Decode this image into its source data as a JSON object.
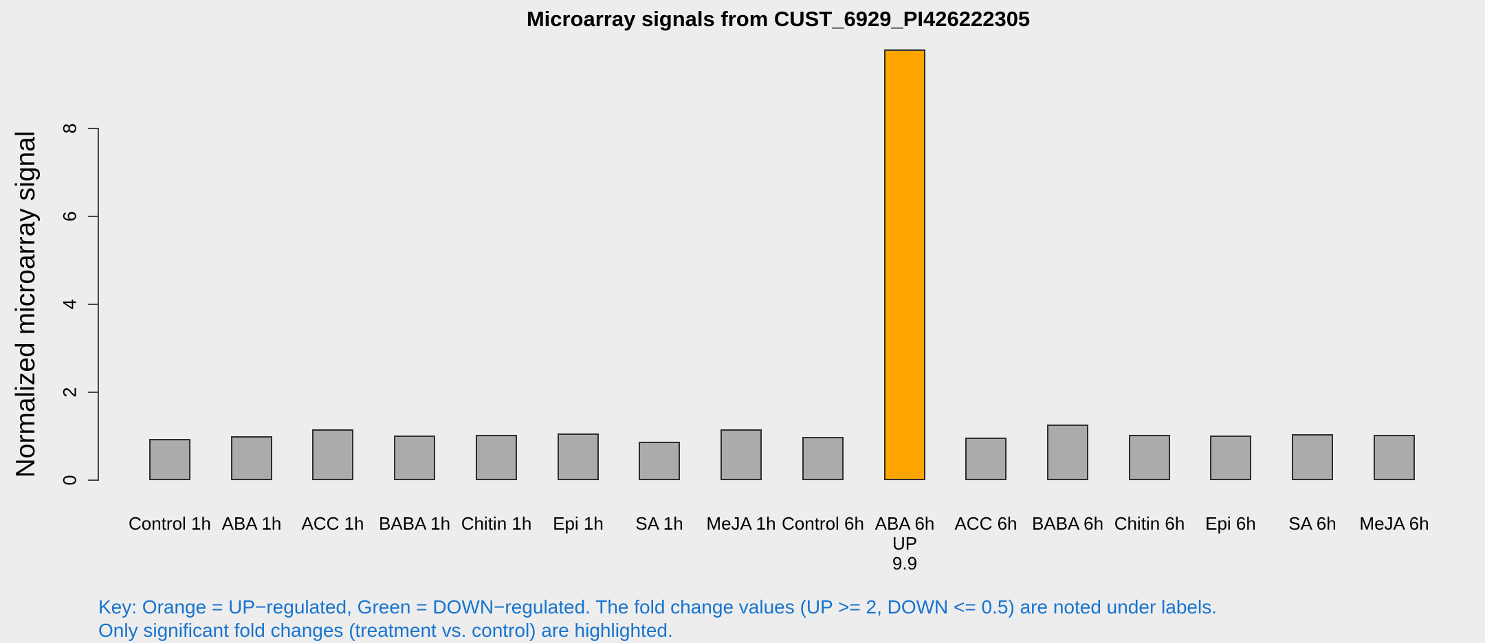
{
  "title": "Microarray signals from CUST_6929_PI426222305",
  "ylabel": "Normalized microarray signal",
  "footer": {
    "line1": "Key: Orange = UP−regulated, Green = DOWN−regulated. The fold change values (UP >= 2, DOWN <= 0.5) are noted under labels.",
    "line2": "Only significant fold changes (treatment vs. control) are highlighted.",
    "color": "#1874CD"
  },
  "colors": {
    "background": "#EDEDED",
    "bar_default": "#ABABAB",
    "bar_up": "#FFA500",
    "bar_border": "#2E2E2E",
    "axis": "#444444"
  },
  "chart_data": {
    "type": "bar",
    "title": "Microarray signals from CUST_6929_PI426222305",
    "xlabel": "",
    "ylabel": "Normalized microarray signal",
    "ylim": [
      0,
      8
    ],
    "yticks": [
      0,
      2,
      4,
      6,
      8
    ],
    "grid": false,
    "legend_position": "none",
    "categories": [
      "Control 1h",
      "ABA 1h",
      "ACC 1h",
      "BABA 1h",
      "Chitin 1h",
      "Epi 1h",
      "SA 1h",
      "MeJA 1h",
      "Control 6h",
      "ABA 6h",
      "ACC 6h",
      "BABA 6h",
      "Chitin 6h",
      "Epi 6h",
      "SA 6h",
      "MeJA 6h"
    ],
    "values": [
      0.94,
      1.0,
      1.16,
      1.02,
      1.03,
      1.06,
      0.88,
      1.16,
      0.98,
      9.8,
      0.97,
      1.27,
      1.03,
      1.01,
      1.05,
      1.03
    ],
    "highlight": [
      {
        "index": 9,
        "type": "UP",
        "fold_change": "9.9",
        "annotation_lines": [
          "UP",
          "9.9"
        ]
      }
    ]
  }
}
